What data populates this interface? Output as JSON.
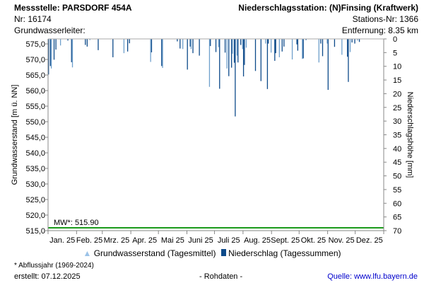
{
  "header": {
    "station_title": "Messstelle: PARSDORF 454A",
    "nr": "Nr: 16174",
    "aquifer": "Grundwasserleiter:",
    "precip_station": "Niederschlagsstation: (N)Finsing (Kraftwerk)",
    "station_nr": "Stations-Nr: 1366",
    "distance": "Entfernung: 8.35 km"
  },
  "footer": {
    "note": "* Abflussjahr (1969-2024)",
    "created": "erstellt:  07.12.2025",
    "raw": "- Rohdaten -",
    "source": "Quelle: www.lfu.bayern.de"
  },
  "legend": [
    {
      "label": "Grundwasserstand (Tagesmittel)",
      "color": "#9cc3e8"
    },
    {
      "label": "Niederschlag (Tagessummen)",
      "color": "#0d4a8a"
    }
  ],
  "chart_data": {
    "type": "bar",
    "ylabel": "Grundwasserstand [m ü. NN]",
    "y2label": "Niederschlagshöhe [mm]",
    "ylim": [
      515,
      576.6
    ],
    "y2lim": [
      0,
      70
    ],
    "yticks": [
      "515,0",
      "520,0",
      "525,0",
      "530,0",
      "535,0",
      "540,0",
      "545,0",
      "550,0",
      "555,0",
      "560,0",
      "565,0",
      "570,0",
      "575,0"
    ],
    "y2ticks": [
      "0",
      "5",
      "10",
      "15",
      "20",
      "25",
      "30",
      "35",
      "40",
      "45",
      "50",
      "55",
      "60",
      "65",
      "70"
    ],
    "months": [
      "Jan. 25",
      "Feb. 25",
      "Mrz. 25",
      "Apr. 25",
      "Mai 25",
      "Juni 25",
      "Juli 25",
      "Aug. 25",
      "Sept. 25",
      "Okt. 25",
      "Nov. 25",
      "Dez. 25"
    ],
    "mean_line": {
      "label": "MW*: 515.90",
      "value": 515.9,
      "color": "#1a9a1a"
    },
    "bar_color": "#0d4a8a",
    "bar_color_alt": "#6fa0cc",
    "precip": [
      [
        1,
        13.0
      ],
      [
        3,
        9.9
      ],
      [
        4,
        10.8
      ],
      [
        7,
        7.6
      ],
      [
        9,
        3.9
      ],
      [
        14,
        2.4
      ],
      [
        22,
        0.6
      ],
      [
        26,
        8.5
      ],
      [
        27,
        10.4
      ],
      [
        41,
        2.2
      ],
      [
        43,
        2.8
      ],
      [
        46,
        0.4
      ],
      [
        55,
        4.1
      ],
      [
        71,
        6.7
      ],
      [
        83,
        5.2
      ],
      [
        87,
        4.6
      ],
      [
        89,
        1.6
      ],
      [
        112,
        8.4
      ],
      [
        113,
        4.9
      ],
      [
        124,
        9.9
      ],
      [
        125,
        10.6
      ],
      [
        141,
        0.9
      ],
      [
        144,
        3.5
      ],
      [
        147,
        3.7
      ],
      [
        152,
        11.2
      ],
      [
        155,
        2.8
      ],
      [
        156,
        3.7
      ],
      [
        158,
        5.2
      ],
      [
        165,
        6.1
      ],
      [
        176,
        17.5
      ],
      [
        177,
        2.6
      ],
      [
        183,
        4.8
      ],
      [
        186,
        3.0
      ],
      [
        187,
        18.2
      ],
      [
        193,
        5.0
      ],
      [
        195,
        10.8
      ],
      [
        197,
        13.6
      ],
      [
        200,
        10.5
      ],
      [
        201,
        5.4
      ],
      [
        203,
        8.7
      ],
      [
        204,
        28.3
      ],
      [
        206,
        6.1
      ],
      [
        207,
        8.6
      ],
      [
        210,
        2.2
      ],
      [
        212,
        3.7
      ],
      [
        213,
        13.7
      ],
      [
        214,
        9.5
      ],
      [
        216,
        3.2
      ],
      [
        226,
        11.7
      ],
      [
        232,
        15.4
      ],
      [
        237,
        1.7
      ],
      [
        239,
        18.3
      ],
      [
        240,
        1.7
      ],
      [
        243,
        5.0
      ],
      [
        247,
        8.0
      ],
      [
        248,
        5.2
      ],
      [
        252,
        6.7
      ],
      [
        255,
        4.6
      ],
      [
        257,
        2.8
      ],
      [
        266,
        7.5
      ],
      [
        271,
        2.0
      ],
      [
        272,
        4.3
      ],
      [
        277,
        7.3
      ],
      [
        278,
        7.1
      ],
      [
        281,
        0.4
      ],
      [
        295,
        8.6
      ],
      [
        297,
        1.7
      ],
      [
        299,
        6.3
      ],
      [
        304,
        1.7
      ],
      [
        305,
        18.6
      ],
      [
        312,
        2.9
      ],
      [
        320,
        5.8
      ],
      [
        326,
        6.5
      ],
      [
        327,
        15.7
      ],
      [
        329,
        4.8
      ],
      [
        331,
        1.3
      ],
      [
        334,
        1.7
      ],
      [
        337,
        0.6
      ],
      [
        339,
        1.1
      ]
    ]
  }
}
